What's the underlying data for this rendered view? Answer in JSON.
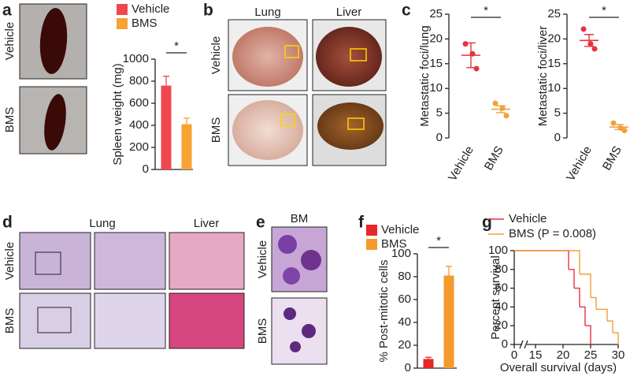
{
  "figure": {
    "panel_letters": [
      "a",
      "b",
      "c",
      "d",
      "e",
      "f",
      "g"
    ],
    "a_rows": [
      "Vehicle",
      "BMS"
    ],
    "b_columns": [
      "Lung",
      "Liver"
    ],
    "b_rows": [
      "Vehicle",
      "BMS"
    ],
    "d_columns": [
      "Lung",
      "Liver"
    ],
    "d_rows": [
      "Vehicle",
      "BMS"
    ],
    "e_title": "BM",
    "e_rows": [
      "Vehicle",
      "BMS"
    ]
  },
  "chart_data": [
    {
      "type": "bar",
      "y_label": "Spleen weight (mg)",
      "ylim": [
        0,
        1000
      ],
      "yticks": [
        0,
        200,
        400,
        600,
        800,
        1000
      ],
      "annotation": "*",
      "series": [
        {
          "name": "Vehicle",
          "color": "#f0474f",
          "values": [
            760
          ],
          "errors": [
            85
          ]
        },
        {
          "name": "BMS",
          "color": "#f7a233",
          "values": [
            410
          ],
          "errors": [
            55
          ]
        }
      ]
    },
    {
      "type": "dot",
      "y_label": "Metastatic foci/lung",
      "ylim": [
        0,
        25
      ],
      "yticks": [
        0,
        5,
        10,
        15,
        20,
        25
      ],
      "annotation": "*",
      "categories": [
        "Vehicle",
        "BMS"
      ],
      "colors": [
        "#e8323c",
        "#f3a03a"
      ],
      "points": [
        [
          19,
          17,
          14
        ],
        [
          7,
          6,
          4.5
        ]
      ],
      "means": [
        16.7,
        5.8
      ],
      "errors": [
        2.5,
        0.7
      ]
    },
    {
      "type": "dot",
      "y_label": "Metastatic foci/liver",
      "ylim": [
        0,
        25
      ],
      "yticks": [
        0,
        5,
        10,
        15,
        20,
        25
      ],
      "annotation": "*",
      "categories": [
        "Vehicle",
        "BMS"
      ],
      "colors": [
        "#e8323c",
        "#f3a03a"
      ],
      "points": [
        [
          22,
          19,
          18
        ],
        [
          3,
          2,
          1.5
        ]
      ],
      "means": [
        19.7,
        2.2
      ],
      "errors": [
        1.2,
        0.5
      ]
    },
    {
      "type": "bar",
      "y_label": "% Post-mitotic cells",
      "ylim": [
        0,
        100
      ],
      "yticks": [
        0,
        20,
        40,
        60,
        80,
        100
      ],
      "annotation": "*",
      "series": [
        {
          "name": "Vehicle",
          "color": "#e8262a",
          "values": [
            8
          ],
          "errors": [
            1.5
          ]
        },
        {
          "name": "BMS",
          "color": "#f59a2c",
          "values": [
            81
          ],
          "errors": [
            8
          ]
        }
      ]
    },
    {
      "type": "survival",
      "y_label": "Percent survival",
      "x_label": "Overall survival (days)",
      "xlim": [
        0,
        30
      ],
      "xticks": [
        0,
        15,
        20,
        25,
        30
      ],
      "ylim": [
        0,
        100
      ],
      "yticks": [
        0,
        20,
        40,
        60,
        80,
        100
      ],
      "series": [
        {
          "name": "Vehicle",
          "color": "#e8323c",
          "x": [
            0,
            21,
            22,
            23,
            24,
            25
          ],
          "values": [
            100,
            80,
            60,
            40,
            20,
            0
          ]
        },
        {
          "name": "BMS (P = 0.008)",
          "color": "#f3a03a",
          "x": [
            0,
            23,
            25,
            26,
            28,
            29,
            30
          ],
          "values": [
            100,
            75,
            50,
            37.5,
            25,
            12.5,
            0
          ]
        }
      ]
    }
  ]
}
